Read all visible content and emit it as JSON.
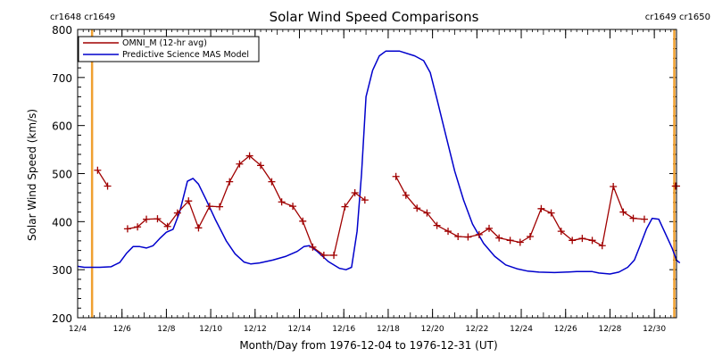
{
  "chart_data": {
    "type": "line",
    "title": "Solar Wind Speed Comparisons",
    "xlabel": "Month/Day from 1976-12-04 to 1976-12-31 (UT)",
    "ylabel": "Solar Wind Speed (km/s)",
    "ylim": [
      200,
      800
    ],
    "xlim": [
      0,
      27
    ],
    "yticks": [
      200,
      300,
      400,
      500,
      600,
      700,
      800
    ],
    "xticks": [
      {
        "x": 0,
        "label": "12/4"
      },
      {
        "x": 2,
        "label": "12/6"
      },
      {
        "x": 4,
        "label": "12/8"
      },
      {
        "x": 6,
        "label": "12/10"
      },
      {
        "x": 8,
        "label": "12/12"
      },
      {
        "x": 10,
        "label": "12/14"
      },
      {
        "x": 12,
        "label": "12/16"
      },
      {
        "x": 14,
        "label": "12/18"
      },
      {
        "x": 16,
        "label": "12/20"
      },
      {
        "x": 18,
        "label": "12/22"
      },
      {
        "x": 20,
        "label": "12/24"
      },
      {
        "x": 22,
        "label": "12/26"
      },
      {
        "x": 24,
        "label": "12/28"
      },
      {
        "x": 26,
        "label": "12/30"
      }
    ],
    "carrington": {
      "left_label": "cr1648 cr1649",
      "right_label": "cr1649 cr1650",
      "left_x": 0.65,
      "right_x": 26.9,
      "color": "#f0a030"
    },
    "legend": {
      "position": "top-left"
    },
    "series": [
      {
        "name": "OMNI_M (12-hr avg)",
        "color": "#a00000",
        "markers": true,
        "segments": [
          [
            [
              0.9,
              507
            ],
            [
              1.35,
              474
            ]
          ],
          [
            [
              2.25,
              385
            ],
            [
              2.7,
              389
            ],
            [
              3.1,
              405
            ],
            [
              3.6,
              406
            ],
            [
              4.05,
              390
            ],
            [
              4.5,
              418
            ],
            [
              5.0,
              443
            ],
            [
              5.45,
              387
            ],
            [
              5.95,
              432
            ],
            [
              6.4,
              431
            ],
            [
              6.85,
              483
            ],
            [
              7.3,
              520
            ],
            [
              7.75,
              537
            ],
            [
              8.25,
              517
            ],
            [
              8.75,
              483
            ],
            [
              9.2,
              441
            ],
            [
              9.7,
              432
            ],
            [
              10.15,
              401
            ],
            [
              10.6,
              347
            ],
            [
              11.1,
              330
            ],
            [
              11.55,
              330
            ],
            [
              12.05,
              431
            ],
            [
              12.5,
              460
            ],
            [
              12.95,
              445
            ]
          ],
          [
            [
              14.35,
              494
            ],
            [
              14.8,
              455
            ],
            [
              15.3,
              428
            ],
            [
              15.75,
              418
            ],
            [
              16.2,
              392
            ],
            [
              16.7,
              380
            ],
            [
              17.15,
              369
            ],
            [
              17.6,
              368
            ],
            [
              18.1,
              373
            ],
            [
              18.55,
              386
            ],
            [
              19.0,
              366
            ],
            [
              19.5,
              361
            ],
            [
              19.95,
              357
            ],
            [
              20.4,
              369
            ],
            [
              20.9,
              427
            ],
            [
              21.35,
              418
            ],
            [
              21.8,
              380
            ],
            [
              22.3,
              361
            ],
            [
              22.75,
              365
            ],
            [
              23.2,
              361
            ],
            [
              23.65,
              350
            ],
            [
              24.15,
              473
            ],
            [
              24.6,
              420
            ],
            [
              25.05,
              407
            ],
            [
              25.55,
              405
            ]
          ],
          [
            [
              26.95,
              474
            ],
            [
              27.0,
              474
            ]
          ]
        ]
      },
      {
        "name": "Predictive Science MAS Model",
        "color": "#0000cc",
        "markers": false,
        "points": [
          [
            0.0,
            307
          ],
          [
            0.3,
            305
          ],
          [
            1.0,
            305
          ],
          [
            1.5,
            306
          ],
          [
            1.9,
            315
          ],
          [
            2.2,
            334
          ],
          [
            2.5,
            348
          ],
          [
            2.8,
            348
          ],
          [
            3.1,
            345
          ],
          [
            3.4,
            350
          ],
          [
            3.7,
            365
          ],
          [
            4.0,
            378
          ],
          [
            4.3,
            384
          ],
          [
            4.6,
            420
          ],
          [
            4.95,
            484
          ],
          [
            5.2,
            490
          ],
          [
            5.45,
            478
          ],
          [
            5.8,
            445
          ],
          [
            6.2,
            405
          ],
          [
            6.7,
            360
          ],
          [
            7.1,
            333
          ],
          [
            7.5,
            316
          ],
          [
            7.8,
            312
          ],
          [
            8.2,
            314
          ],
          [
            8.8,
            320
          ],
          [
            9.4,
            328
          ],
          [
            9.9,
            338
          ],
          [
            10.2,
            348
          ],
          [
            10.45,
            350
          ],
          [
            10.8,
            338
          ],
          [
            11.3,
            317
          ],
          [
            11.8,
            303
          ],
          [
            12.1,
            300
          ],
          [
            12.35,
            305
          ],
          [
            12.6,
            380
          ],
          [
            12.8,
            500
          ],
          [
            13.0,
            660
          ],
          [
            13.3,
            715
          ],
          [
            13.6,
            745
          ],
          [
            13.9,
            755
          ],
          [
            14.5,
            755
          ],
          [
            15.2,
            745
          ],
          [
            15.6,
            735
          ],
          [
            15.9,
            710
          ],
          [
            16.2,
            655
          ],
          [
            16.6,
            580
          ],
          [
            17.0,
            505
          ],
          [
            17.4,
            445
          ],
          [
            17.8,
            395
          ],
          [
            18.3,
            355
          ],
          [
            18.8,
            328
          ],
          [
            19.3,
            310
          ],
          [
            19.8,
            302
          ],
          [
            20.3,
            297
          ],
          [
            20.8,
            295
          ],
          [
            21.5,
            294
          ],
          [
            22.0,
            295
          ],
          [
            22.5,
            296
          ],
          [
            23.2,
            296
          ],
          [
            23.5,
            293
          ],
          [
            24.0,
            291
          ],
          [
            24.4,
            295
          ],
          [
            24.8,
            305
          ],
          [
            25.1,
            320
          ],
          [
            25.4,
            355
          ],
          [
            25.65,
            385
          ],
          [
            25.9,
            407
          ],
          [
            26.2,
            405
          ],
          [
            26.5,
            375
          ],
          [
            26.8,
            345
          ],
          [
            27.0,
            320
          ],
          [
            27.15,
            314
          ]
        ]
      }
    ]
  }
}
